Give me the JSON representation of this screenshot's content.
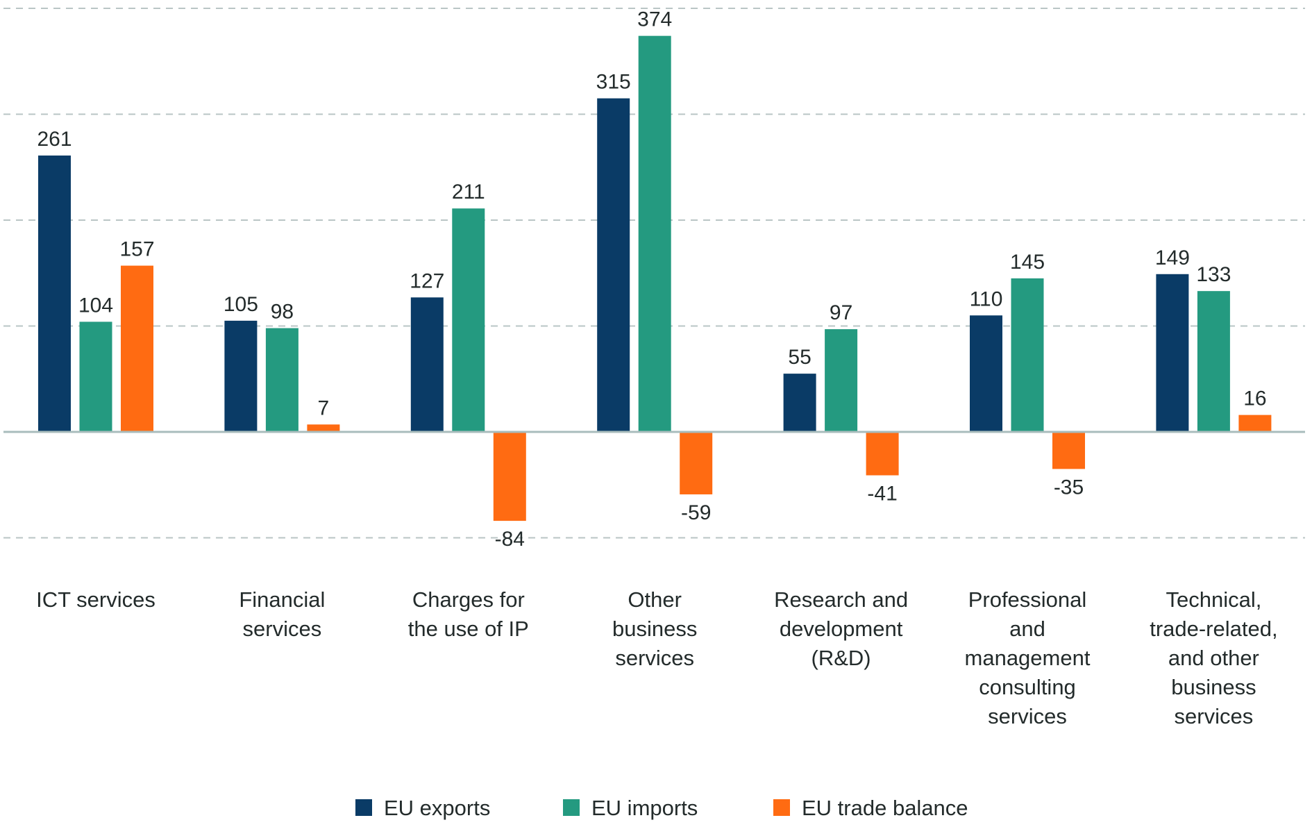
{
  "chart_data": {
    "type": "bar",
    "title": "",
    "xlabel": "",
    "ylabel": "",
    "ylim": [
      -100,
      400
    ],
    "yticks": [
      -100,
      0,
      100,
      200,
      300,
      400
    ],
    "grid": true,
    "show_y_tick_labels": false,
    "legend_position": "bottom",
    "categories": [
      [
        "ICT services"
      ],
      [
        "Financial",
        "services"
      ],
      [
        "Charges for",
        "the use of IP"
      ],
      [
        "Other",
        "business",
        "services"
      ],
      [
        "Research and",
        "development",
        "(R&D)"
      ],
      [
        "Professional",
        "and",
        "management",
        "consulting",
        "services"
      ],
      [
        "Technical,",
        "trade-related,",
        "and other",
        "business",
        "services"
      ]
    ],
    "series": [
      {
        "name": "EU exports",
        "color": "#0a3b66",
        "values": [
          261,
          105,
          127,
          315,
          55,
          110,
          149
        ]
      },
      {
        "name": "EU imports",
        "color": "#249a80",
        "values": [
          104,
          98,
          211,
          374,
          97,
          145,
          133
        ]
      },
      {
        "name": "EU trade balance",
        "color": "#ff6b12",
        "values": [
          157,
          7,
          -84,
          -59,
          -41,
          -35,
          16
        ]
      }
    ]
  }
}
